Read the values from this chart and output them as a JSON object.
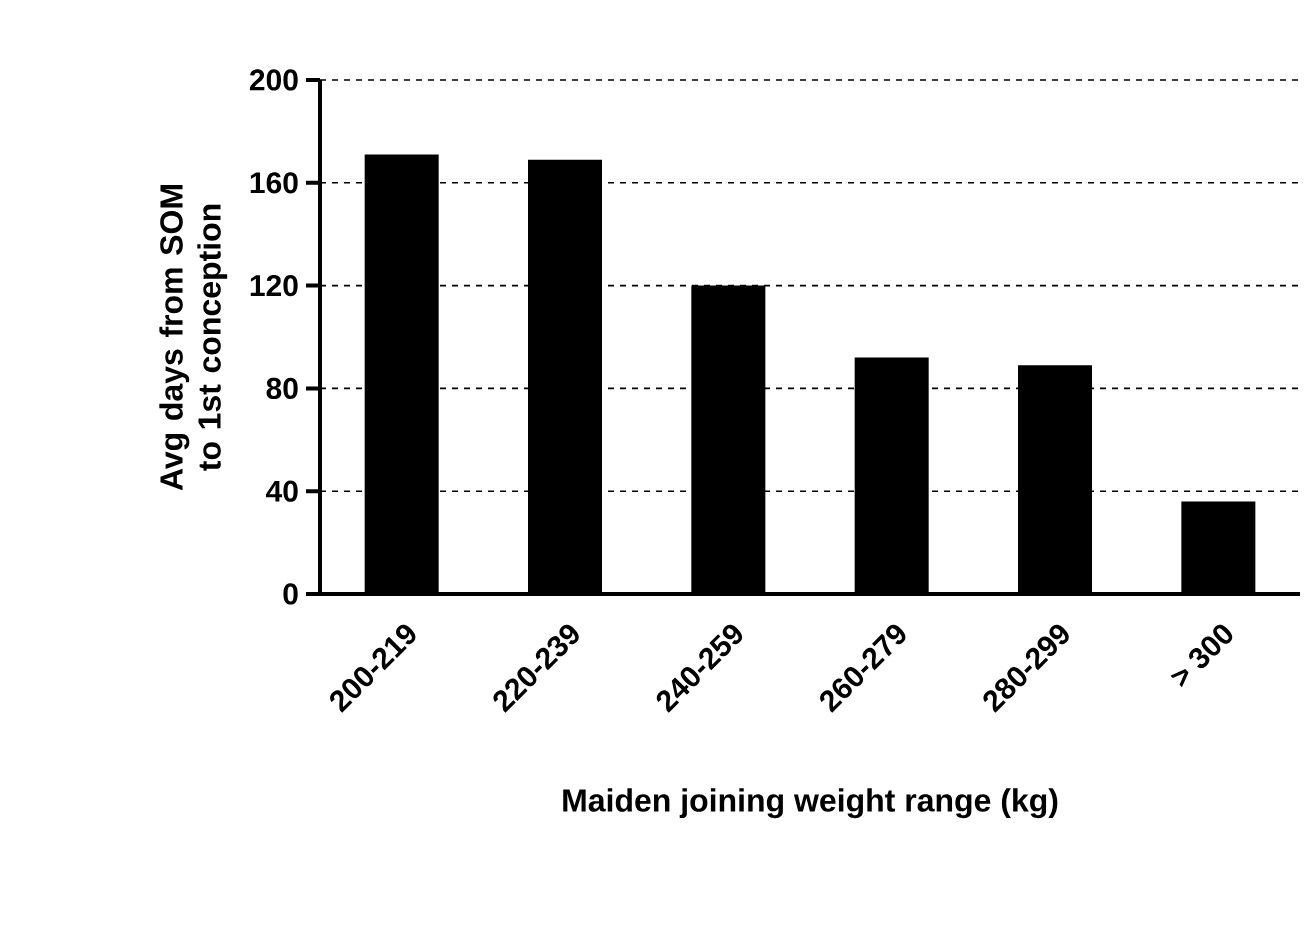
{
  "chart_data": {
    "type": "bar",
    "xlabel": "Maiden joining weight range (kg)",
    "ylabel": "Avg days from SOM to 1st conception",
    "categories": [
      "200-219",
      "220-239",
      "240-259",
      "260-279",
      "280-299",
      "> 300"
    ],
    "values": [
      171,
      169,
      120,
      92,
      89,
      36
    ],
    "color": "#000000",
    "ylim": [
      0,
      200
    ],
    "yticks": [
      0,
      40,
      80,
      120,
      160,
      200
    ],
    "grid": "y"
  }
}
